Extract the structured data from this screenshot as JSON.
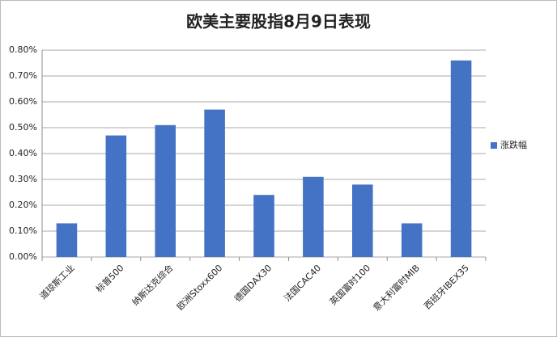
{
  "chart_data": {
    "type": "bar",
    "title": "欧美主要股指8月9日表现",
    "categories": [
      "道琼斯工业",
      "标普500",
      "纳斯达克综合",
      "欧洲Stoxx600",
      "德国DAX30",
      "法国CAC40",
      "英国富时100",
      "意大利富时MIB",
      "西班牙IBEX35"
    ],
    "series": [
      {
        "name": "涨跌幅",
        "color": "#4472c4",
        "values": [
          0.13,
          0.47,
          0.51,
          0.57,
          0.24,
          0.31,
          0.28,
          0.13,
          0.76
        ]
      }
    ],
    "ylim": [
      0,
      0.8
    ],
    "yticks": [
      {
        "value": 0,
        "label": "0.00%"
      },
      {
        "value": 0.1,
        "label": "0.10%"
      },
      {
        "value": 0.2,
        "label": "0.20%"
      },
      {
        "value": 0.3,
        "label": "0.30%"
      },
      {
        "value": 0.4,
        "label": "0.40%"
      },
      {
        "value": 0.5,
        "label": "0.50%"
      },
      {
        "value": 0.6,
        "label": "0.60%"
      },
      {
        "value": 0.7,
        "label": "0.70%"
      },
      {
        "value": 0.8,
        "label": "0.80%"
      }
    ],
    "grid": true,
    "legend": "right"
  }
}
